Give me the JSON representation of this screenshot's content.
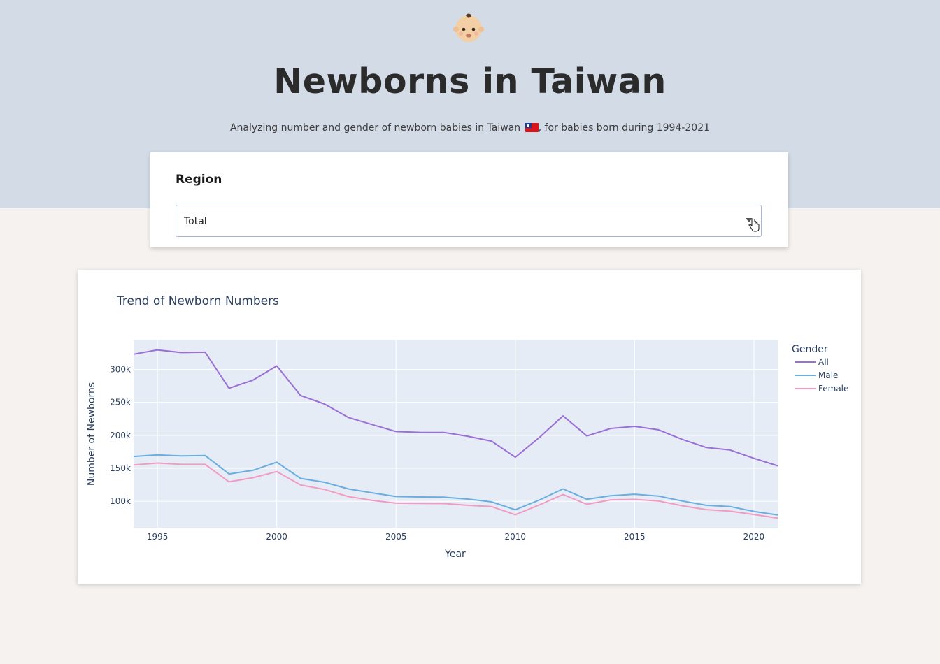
{
  "header": {
    "emoji": "baby-face-icon",
    "title": "Newborns in Taiwan",
    "subtitle_before": "Analyzing number and gender of newborn babies in Taiwan ",
    "subtitle_after": ", for babies born during 1994-2021",
    "flag_icon": "taiwan-flag-icon"
  },
  "filter": {
    "label": "Region",
    "selected": "Total"
  },
  "colors": {
    "hero_bg": "#d2dbe6",
    "page_bg": "#f6f2ef",
    "plot_bg": "#e5ecf6",
    "all": "#9b6fd6",
    "male": "#6aaee0",
    "female": "#f29ac2"
  },
  "chart_data": {
    "type": "line",
    "title": "Trend of Newborn Numbers",
    "xlabel": "Year",
    "ylabel": "Number of Newborns",
    "x": [
      1994,
      1995,
      1996,
      1997,
      1998,
      1999,
      2000,
      2001,
      2002,
      2003,
      2004,
      2005,
      2006,
      2007,
      2008,
      2009,
      2010,
      2011,
      2012,
      2013,
      2014,
      2015,
      2016,
      2017,
      2018,
      2019,
      2020,
      2021
    ],
    "xlim": [
      1994,
      2021
    ],
    "ylim": [
      60000,
      345000
    ],
    "x_ticks": [
      1995,
      2000,
      2005,
      2010,
      2015,
      2020
    ],
    "y_ticks": [
      100000,
      150000,
      200000,
      250000,
      300000
    ],
    "y_tick_labels": [
      "100k",
      "150k",
      "200k",
      "250k",
      "300k"
    ],
    "legend_title": "Gender",
    "legend_position": "right",
    "grid": true,
    "series": [
      {
        "name": "All",
        "color": "#9b6fd6",
        "values": [
          323000,
          329500,
          325500,
          326000,
          271500,
          283700,
          305300,
          260300,
          247500,
          227100,
          216400,
          205800,
          204500,
          204400,
          198700,
          191300,
          166900,
          196600,
          229500,
          199100,
          210400,
          213600,
          208400,
          193800,
          181600,
          177800,
          165200,
          153800
        ]
      },
      {
        "name": "Male",
        "color": "#6aaee0",
        "values": [
          168000,
          170500,
          168800,
          169400,
          141500,
          147000,
          159300,
          134700,
          128900,
          118800,
          112900,
          107300,
          106600,
          106300,
          103400,
          99200,
          87200,
          101900,
          118800,
          103100,
          108400,
          110800,
          108000,
          100500,
          94000,
          92100,
          84700,
          79300
        ]
      },
      {
        "name": "Female",
        "color": "#f29ac2",
        "values": [
          155000,
          158000,
          156000,
          156000,
          129500,
          135800,
          145100,
          124700,
          118000,
          107300,
          101400,
          97200,
          96800,
          96500,
          94000,
          92100,
          79700,
          94400,
          110200,
          95500,
          102300,
          102900,
          100600,
          93300,
          87400,
          85000,
          80000,
          74500
        ]
      }
    ]
  }
}
